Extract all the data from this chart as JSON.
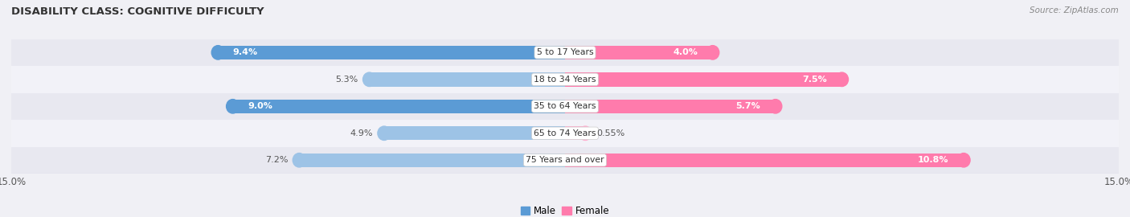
{
  "title": "DISABILITY CLASS: COGNITIVE DIFFICULTY",
  "source": "Source: ZipAtlas.com",
  "categories": [
    "5 to 17 Years",
    "18 to 34 Years",
    "35 to 64 Years",
    "65 to 74 Years",
    "75 Years and over"
  ],
  "male_values": [
    9.4,
    5.3,
    9.0,
    4.9,
    7.2
  ],
  "female_values": [
    4.0,
    7.5,
    5.7,
    0.55,
    10.8
  ],
  "male_labels": [
    "9.4%",
    "5.3%",
    "9.0%",
    "4.9%",
    "7.2%"
  ],
  "female_labels": [
    "4.0%",
    "7.5%",
    "5.7%",
    "0.55%",
    "10.8%"
  ],
  "male_dark": "#5B9BD5",
  "male_light": "#9DC3E6",
  "female_dark": "#FF7BAC",
  "female_light": "#FFAECE",
  "male_color_indices": [
    0,
    1,
    0,
    1,
    1
  ],
  "female_color_indices": [
    0,
    0,
    0,
    1,
    0
  ],
  "xlim": 15.0,
  "bar_height": 0.52,
  "row_bg_dark": "#E8E8F0",
  "row_bg_light": "#F2F2F8",
  "fig_bg": "#F0F0F5",
  "label_fontsize": 8.0,
  "title_fontsize": 9.5
}
